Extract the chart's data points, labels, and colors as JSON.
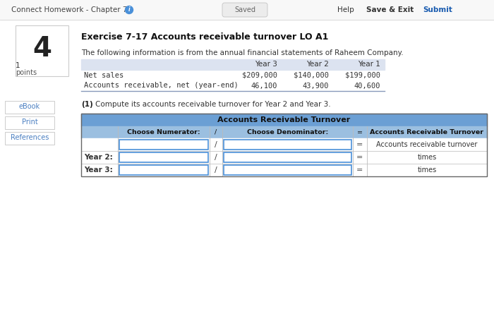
{
  "bg_color": "#ffffff",
  "nav_bg": "#f8f8f8",
  "nav_text": "Connect Homework - Chapter 7",
  "nav_saved": "Saved",
  "nav_help": "Help",
  "nav_save_exit": "Save & Exit",
  "nav_submit": "Submit",
  "nav_submit_color": "#1a5cb0",
  "question_number": "4",
  "exercise_title": "Exercise 7-17 Accounts receivable turnover LO A1",
  "intro_text": "The following information is from the annual financial statements of Raheem Company.",
  "sidebar_links": [
    "eBook",
    "Print",
    "References"
  ],
  "sidebar_link_color": "#4a7fc1",
  "data_table_header_bg": "#dce3f0",
  "data_table_col_headers": [
    "Year 3",
    "Year 2",
    "Year 1"
  ],
  "data_table_rows": [
    [
      "Net sales",
      "$209,000",
      "$140,000",
      "$199,000"
    ],
    [
      "Accounts receivable, net (year-end)",
      "46,100",
      "43,900",
      "40,600"
    ]
  ],
  "part1_text": "Compute its accounts receivable turnover for Year 2 and Year 3.",
  "turnover_table_header": "Accounts Receivable Turnover",
  "turnover_header_bg": "#6b9fd4",
  "turnover_subheader_bg": "#9bbfe0",
  "turnover_col_headers": [
    "",
    "Choose Numerator:",
    "/",
    "Choose Denominator:",
    "=",
    "Accounts Receivable Turnover"
  ],
  "turnover_row_labels": [
    "",
    "Year 2:",
    "Year 3:"
  ],
  "turnover_result_texts": [
    "Accounts receivable turnover",
    "times",
    "times"
  ],
  "input_border_color": "#4a90d9",
  "nav_border_color": "#dddddd"
}
